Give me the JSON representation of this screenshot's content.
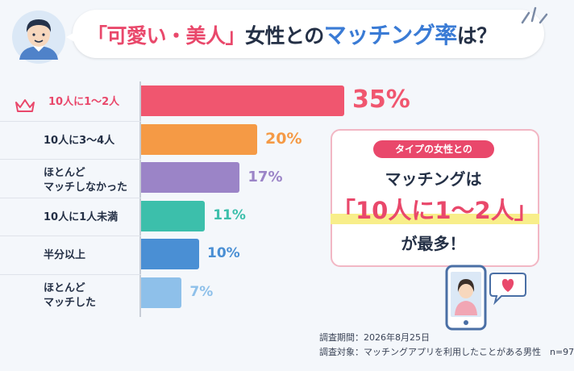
{
  "title": {
    "part1": "「可愛い・美人」",
    "part2": "女性との",
    "part3": "マッチング率",
    "part4": "は？"
  },
  "chart_data": {
    "type": "bar",
    "orientation": "horizontal",
    "categories": [
      "10人に1〜2人",
      "10人に3〜4人",
      "ほとんど\nマッチしなかった",
      "10人に1人未満",
      "半分以上",
      "ほとんど\nマッチした"
    ],
    "values": [
      35,
      20,
      17,
      11,
      10,
      7
    ],
    "value_labels": [
      "35%",
      "20%",
      "17%",
      "11%",
      "10%",
      "7%"
    ],
    "colors": [
      "#f0566f",
      "#f59a45",
      "#9b84c7",
      "#3cbfab",
      "#4a8fd4",
      "#8ec0ea"
    ],
    "highlight_index": 0,
    "xlim": [
      0,
      40
    ]
  },
  "callout": {
    "tag": "タイプの女性との",
    "line1": "マッチングは",
    "line2": "「10人に1〜2人」",
    "line3": "が最多！"
  },
  "footer": {
    "date": "調査期間：2026年8月25日",
    "target": "調査対象：マッチングアプリを利用したことがある男性　n=97"
  },
  "icons": [
    "man-avatar-icon",
    "crown-icon",
    "phone-icon",
    "heart-bubble-icon"
  ]
}
